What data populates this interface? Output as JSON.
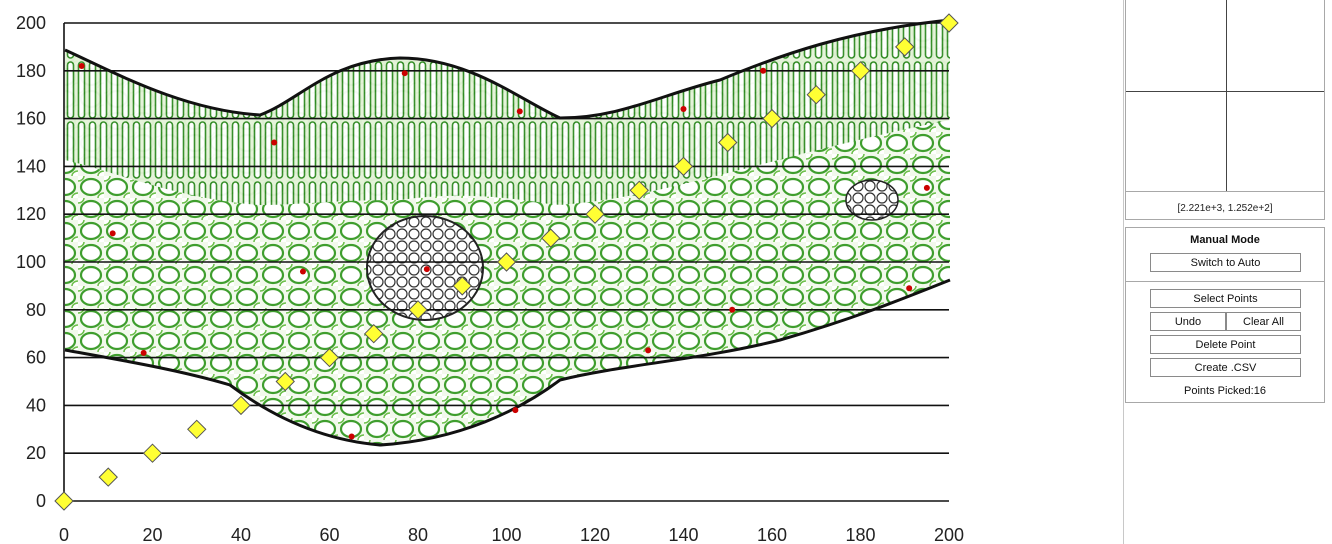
{
  "chart_data": {
    "type": "scatter",
    "x_ticks": [
      0,
      20,
      40,
      60,
      80,
      100,
      120,
      140,
      160,
      180,
      200
    ],
    "y_ticks": [
      0,
      20,
      40,
      60,
      80,
      100,
      120,
      140,
      160,
      180,
      200
    ],
    "xlim": [
      0,
      200
    ],
    "ylim": [
      0,
      200
    ],
    "grid": "horizontal",
    "series": [
      {
        "marker": "diamond",
        "color": "#ffff33",
        "x": [
          0,
          10,
          20,
          30,
          40,
          50,
          60,
          70,
          80,
          90,
          100,
          110,
          120,
          130,
          140,
          150,
          160,
          170,
          180,
          190,
          200
        ],
        "y": [
          0,
          10,
          20,
          30,
          40,
          50,
          60,
          70,
          80,
          90,
          100,
          110,
          120,
          130,
          140,
          150,
          160,
          170,
          180,
          190,
          200
        ]
      },
      {
        "marker": "dot",
        "color": "#cc0000",
        "x": [
          4,
          11,
          18,
          47.5,
          54,
          65,
          77,
          82,
          102,
          103,
          132,
          140,
          151,
          158,
          191,
          195
        ],
        "y": [
          182,
          112,
          62,
          150,
          96,
          27,
          179,
          97,
          38,
          163,
          63,
          164,
          80,
          180,
          89,
          131
        ]
      }
    ]
  },
  "colors": {
    "background_image": "leaf cross-section micrograph",
    "tissue_green": "#3f9e2e",
    "cell_wall": "#1a1a1a"
  },
  "zoom": {
    "coords": "[2.221e+3, 1.252e+2]"
  },
  "controls": {
    "mode_title": "Manual Mode",
    "switch_label": "Switch to Auto",
    "select_label": "Select Points",
    "undo_label": "Undo",
    "clear_label": "Clear All",
    "delete_label": "Delete Point",
    "csv_label": "Create .CSV",
    "points_picked": "Points Picked:16"
  }
}
